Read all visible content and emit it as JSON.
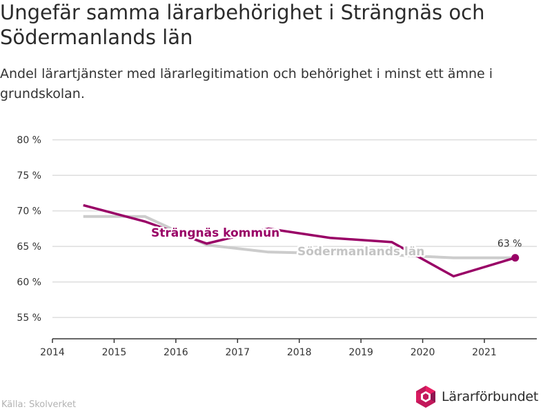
{
  "header": {
    "title": "Ungefär samma lärarbehörighet i Strängnäs och Södermanlands län",
    "subtitle": "Andel lärartjänster med lärarlegitimation och behörighet i minst ett ämne i grundskolan."
  },
  "footer": {
    "source": "Källa: Skolverket",
    "brand": "Lärarförbundet"
  },
  "colors": {
    "primary": "#990066",
    "secondary": "#cccccc",
    "grid": "#dddddd",
    "axis": "#333333"
  },
  "chart_data": {
    "type": "line",
    "title": "Ungefär samma lärarbehörighet i Strängnäs och Södermanlands län",
    "subtitle": "Andel lärartjänster med lärarlegitimation och behörighet i minst ett ämne i grundskolan.",
    "xlabel": "",
    "ylabel": "",
    "xlim": [
      2014,
      2021.85
    ],
    "ylim": [
      52,
      82
    ],
    "x_ticks": [
      2014,
      2015,
      2016,
      2017,
      2018,
      2019,
      2020,
      2021
    ],
    "y_ticks": [
      55,
      60,
      65,
      70,
      75,
      80
    ],
    "y_tick_labels": [
      "55 %",
      "60 %",
      "65 %",
      "70 %",
      "75 %",
      "80 %"
    ],
    "grid": "horizontal",
    "legend": "direct-labels",
    "series": [
      {
        "name": "Södermanlands län",
        "color": "#cccccc",
        "x": [
          2014.5,
          2015.5,
          2016.5,
          2017.5,
          2018.5,
          2019.5,
          2020.5,
          2021.5
        ],
        "values": [
          69.2,
          69.2,
          65.2,
          64.2,
          64.0,
          63.8,
          63.4,
          63.4
        ]
      },
      {
        "name": "Strängnäs kommun",
        "color": "#990066",
        "x": [
          2014.5,
          2015.5,
          2016.5,
          2017.5,
          2018.5,
          2019.5,
          2020.5,
          2021.5
        ],
        "values": [
          70.8,
          68.5,
          65.4,
          67.5,
          66.2,
          65.6,
          60.8,
          63.4
        ]
      }
    ],
    "annotations": [
      {
        "text": "63 %",
        "series": "Strängnäs kommun",
        "point": "last"
      }
    ]
  }
}
